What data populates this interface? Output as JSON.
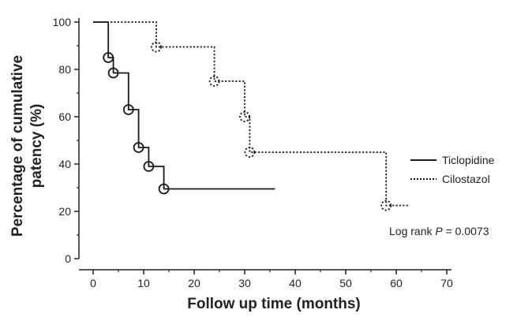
{
  "chart_data": {
    "type": "line",
    "subtype": "kaplan-meier-step",
    "xlabel": "Follow up time (months)",
    "ylabel_lines": [
      "Percentage of cumulative",
      "patency (%)"
    ],
    "xlim": [
      0,
      70
    ],
    "ylim": [
      0,
      100
    ],
    "xticks": [
      0,
      10,
      20,
      30,
      40,
      50,
      60,
      70
    ],
    "yticks": [
      0,
      20,
      40,
      60,
      80,
      100
    ],
    "grid": false,
    "legend_position": "right",
    "annotation": {
      "prefix": "Log rank ",
      "italic": "P",
      "suffix": " = 0.0073"
    },
    "series": [
      {
        "name": "Ticlopidine",
        "style": "solid",
        "color": "#1a1a1a",
        "steps": [
          [
            0,
            100
          ],
          [
            3,
            85
          ],
          [
            4,
            78.5
          ],
          [
            7,
            63
          ],
          [
            9,
            47
          ],
          [
            11,
            39
          ],
          [
            14,
            29.5
          ]
        ],
        "end_x": 36,
        "censored": [
          [
            3,
            85
          ],
          [
            4,
            78.5
          ],
          [
            7,
            63
          ],
          [
            9,
            47
          ],
          [
            11,
            39
          ],
          [
            14,
            29.5
          ]
        ]
      },
      {
        "name": "Cilostazol",
        "style": "dotted",
        "color": "#1a1a1a",
        "steps": [
          [
            0,
            100
          ],
          [
            12.5,
            89.5
          ],
          [
            24,
            75
          ],
          [
            30,
            60
          ],
          [
            31,
            45
          ],
          [
            58,
            22.5
          ]
        ],
        "end_x": 62.5,
        "censored": [
          [
            12.5,
            89.5
          ],
          [
            24,
            75
          ],
          [
            30,
            60
          ],
          [
            31,
            45
          ],
          [
            58,
            22.5
          ]
        ]
      }
    ]
  }
}
